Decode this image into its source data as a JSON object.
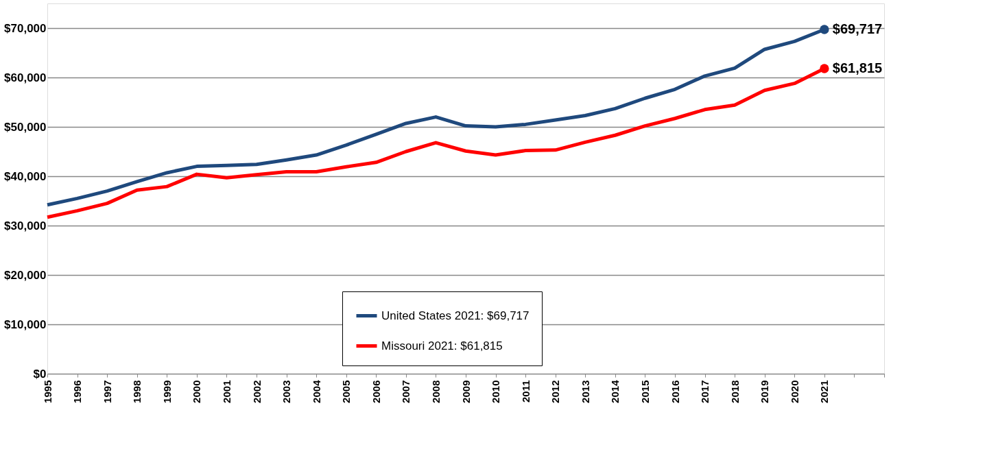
{
  "chart_data": {
    "type": "line",
    "x": [
      1995,
      1996,
      1997,
      1998,
      1999,
      2000,
      2001,
      2002,
      2003,
      2004,
      2005,
      2006,
      2007,
      2008,
      2009,
      2010,
      2011,
      2012,
      2013,
      2014,
      2015,
      2016,
      2017,
      2018,
      2019,
      2020,
      2021
    ],
    "series": [
      {
        "name": "United States 2021: $69,717",
        "color": "#1f497d",
        "values": [
          34200,
          35500,
          37000,
          38900,
          40700,
          42000,
          42200,
          42400,
          43300,
          44300,
          46300,
          48500,
          50700,
          52000,
          50200,
          50000,
          50500,
          51400,
          52300,
          53700,
          55800,
          57600,
          60300,
          61900,
          65700,
          67300,
          69717
        ],
        "value_labels": [
          null,
          null,
          null,
          null,
          null,
          null,
          null,
          null,
          null,
          null,
          null,
          null,
          null,
          null,
          null,
          null,
          null,
          null,
          null,
          null,
          null,
          null,
          null,
          null,
          null,
          null,
          "$69,717"
        ]
      },
      {
        "name": "Missouri 2021: $61,815",
        "color": "#ff0000",
        "values": [
          31700,
          33000,
          34500,
          37200,
          37900,
          40400,
          39700,
          40300,
          40900,
          40900,
          41900,
          42800,
          45000,
          46800,
          45100,
          44300,
          45200,
          45300,
          46900,
          48300,
          50200,
          51700,
          53500,
          54400,
          57400,
          58800,
          61815
        ],
        "value_labels": [
          null,
          null,
          null,
          null,
          null,
          null,
          null,
          null,
          null,
          null,
          null,
          null,
          null,
          null,
          null,
          null,
          null,
          null,
          null,
          null,
          null,
          null,
          null,
          null,
          null,
          null,
          "$61,815"
        ]
      }
    ],
    "xlim": [
      1995,
      2023
    ],
    "xticks": [
      1995,
      1996,
      1997,
      1998,
      1999,
      2000,
      2001,
      2002,
      2003,
      2004,
      2005,
      2006,
      2007,
      2008,
      2009,
      2010,
      2011,
      2012,
      2013,
      2014,
      2015,
      2016,
      2017,
      2018,
      2019,
      2020,
      2021,
      {
        "value": 2022,
        "label": null
      },
      {
        "value": 2023,
        "label": null
      }
    ],
    "ylim": [
      0,
      75000
    ],
    "yticks": [
      {
        "value": 0,
        "label": "$0"
      },
      {
        "value": 10000,
        "label": "$10,000"
      },
      {
        "value": 20000,
        "label": "$20,000"
      },
      {
        "value": 30000,
        "label": "$30,000"
      },
      {
        "value": 40000,
        "label": "$40,000"
      },
      {
        "value": 50000,
        "label": "$50,000"
      },
      {
        "value": 60000,
        "label": "$60,000"
      },
      {
        "value": 70000,
        "label": "$70,000"
      }
    ],
    "grid": "y",
    "legend": "bottom",
    "marker": "none",
    "line_style": "solid"
  }
}
